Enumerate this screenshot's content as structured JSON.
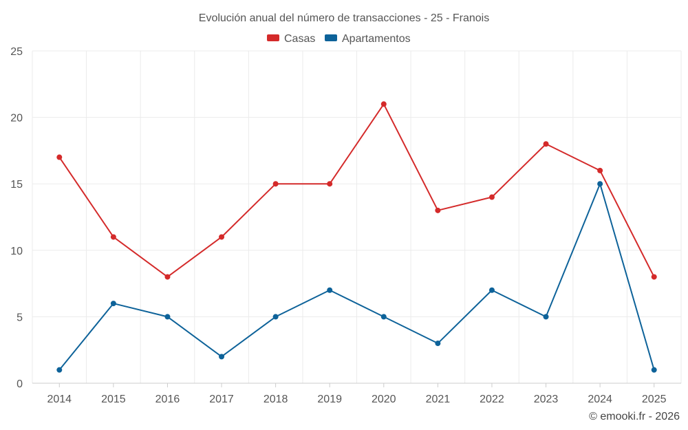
{
  "chart_data": {
    "type": "line",
    "title": "Evolución anual del número de transacciones - 25 - Franois",
    "categories": [
      "2014",
      "2015",
      "2016",
      "2017",
      "2018",
      "2019",
      "2020",
      "2021",
      "2022",
      "2023",
      "2024",
      "2025"
    ],
    "series": [
      {
        "name": "Casas",
        "color": "#d42a2a",
        "values": [
          17,
          11,
          8,
          11,
          15,
          15,
          21,
          13,
          14,
          18,
          16,
          8
        ]
      },
      {
        "name": "Apartamentos",
        "color": "#0d6299",
        "values": [
          1,
          6,
          5,
          2,
          5,
          7,
          5,
          3,
          7,
          5,
          15,
          1
        ]
      }
    ],
    "y_ticks": [
      0,
      5,
      10,
      15,
      20,
      25
    ],
    "ylim": [
      0,
      25
    ],
    "xlabel": "",
    "ylabel": "",
    "grid": true,
    "legend_position": "top-center"
  },
  "credit": "© emooki.fr - 2026"
}
